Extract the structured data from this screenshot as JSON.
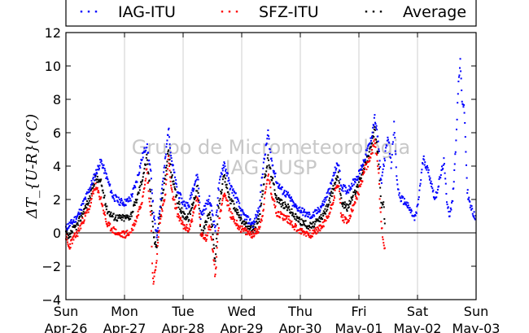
{
  "chart_data": {
    "type": "scatter",
    "ylabel": "ΔT_{U-R}(°C)",
    "ylim": [
      -4,
      12
    ],
    "yticks": [
      -4,
      -2,
      0,
      2,
      4,
      6,
      8,
      10,
      12
    ],
    "ytick_labels": [
      "−4",
      "−2",
      "0",
      "2",
      "4",
      "6",
      "8",
      "10",
      "12"
    ],
    "xlim": [
      0,
      7
    ],
    "xtick_days": [
      "Sun",
      "Mon",
      "Tue",
      "Wed",
      "Thu",
      "Fri",
      "Sat",
      "Sun"
    ],
    "xtick_dates": [
      "Apr-26",
      "Apr-27",
      "Apr-28",
      "Apr-29",
      "Apr-30",
      "May-01",
      "May-02",
      "May-03"
    ],
    "grid": "vertical",
    "legend_position": "top",
    "watermark": [
      "Grupo de Micrometeorologia",
      "IAG - USP"
    ],
    "series": [
      {
        "name": "IAG-ITU",
        "color": "#0000ff",
        "points": [
          [
            0.0,
            0.3
          ],
          [
            0.1,
            0.6
          ],
          [
            0.2,
            1.0
          ],
          [
            0.3,
            1.8
          ],
          [
            0.4,
            2.6
          ],
          [
            0.5,
            3.5
          ],
          [
            0.6,
            4.3
          ],
          [
            0.7,
            3.3
          ],
          [
            0.8,
            2.2
          ],
          [
            0.9,
            1.9
          ],
          [
            1.0,
            1.8
          ],
          [
            1.1,
            2.0
          ],
          [
            1.2,
            3.0
          ],
          [
            1.3,
            4.5
          ],
          [
            1.38,
            5.3
          ],
          [
            1.45,
            3.5
          ],
          [
            1.5,
            1.0
          ],
          [
            1.55,
            -0.3
          ],
          [
            1.6,
            1.5
          ],
          [
            1.7,
            4.5
          ],
          [
            1.75,
            6.3
          ],
          [
            1.8,
            4.5
          ],
          [
            1.9,
            2.5
          ],
          [
            2.0,
            1.8
          ],
          [
            2.1,
            1.6
          ],
          [
            2.15,
            2.5
          ],
          [
            2.2,
            3.0
          ],
          [
            2.25,
            3.5
          ],
          [
            2.3,
            1.0
          ],
          [
            2.4,
            1.7
          ],
          [
            2.45,
            2.0
          ],
          [
            2.5,
            1.2
          ],
          [
            2.55,
            0.2
          ],
          [
            2.6,
            2.5
          ],
          [
            2.65,
            3.5
          ],
          [
            2.7,
            4.2
          ],
          [
            2.8,
            2.8
          ],
          [
            2.9,
            2.2
          ],
          [
            3.0,
            1.2
          ],
          [
            3.1,
            0.8
          ],
          [
            3.2,
            0.5
          ],
          [
            3.3,
            1.5
          ],
          [
            3.35,
            3.5
          ],
          [
            3.45,
            6.0
          ],
          [
            3.5,
            4.5
          ],
          [
            3.6,
            3.0
          ],
          [
            3.7,
            2.5
          ],
          [
            3.8,
            2.2
          ],
          [
            3.9,
            1.6
          ],
          [
            4.0,
            1.4
          ],
          [
            4.1,
            1.1
          ],
          [
            4.2,
            1.0
          ],
          [
            4.3,
            1.3
          ],
          [
            4.4,
            1.8
          ],
          [
            4.5,
            2.6
          ],
          [
            4.6,
            3.8
          ],
          [
            4.65,
            4.2
          ],
          [
            4.7,
            2.8
          ],
          [
            4.8,
            2.5
          ],
          [
            4.9,
            3.0
          ],
          [
            5.0,
            3.5
          ],
          [
            5.1,
            4.5
          ],
          [
            5.2,
            5.5
          ],
          [
            5.27,
            6.9
          ],
          [
            5.33,
            5.5
          ],
          [
            5.38,
            3.0
          ],
          [
            5.42,
            4.0
          ],
          [
            5.5,
            5.8
          ],
          [
            5.55,
            4.0
          ],
          [
            5.6,
            6.5
          ],
          [
            5.65,
            3.0
          ],
          [
            5.7,
            2.1
          ],
          [
            5.8,
            1.8
          ],
          [
            5.9,
            1.2
          ],
          [
            5.95,
            0.8
          ],
          [
            6.0,
            1.5
          ],
          [
            6.05,
            3.0
          ],
          [
            6.1,
            4.5
          ],
          [
            6.15,
            4.0
          ],
          [
            6.2,
            3.5
          ],
          [
            6.3,
            2.0
          ],
          [
            6.4,
            3.5
          ],
          [
            6.45,
            4.3
          ],
          [
            6.5,
            2.0
          ],
          [
            6.55,
            1.0
          ],
          [
            6.6,
            2.0
          ],
          [
            6.65,
            5.0
          ],
          [
            6.7,
            9.0
          ],
          [
            6.73,
            10.2
          ],
          [
            6.76,
            8.0
          ],
          [
            6.8,
            7.3
          ],
          [
            6.85,
            2.5
          ],
          [
            6.9,
            1.6
          ],
          [
            6.95,
            1.2
          ],
          [
            7.0,
            0.8
          ]
        ]
      },
      {
        "name": "SFZ-ITU",
        "color": "#ff0000",
        "points": [
          [
            0.0,
            -0.2
          ],
          [
            0.05,
            -0.9
          ],
          [
            0.1,
            -0.5
          ],
          [
            0.2,
            0.0
          ],
          [
            0.3,
            0.8
          ],
          [
            0.4,
            1.5
          ],
          [
            0.5,
            2.8
          ],
          [
            0.6,
            2.0
          ],
          [
            0.7,
            0.5
          ],
          [
            0.8,
            0.2
          ],
          [
            0.9,
            -0.1
          ],
          [
            1.0,
            -0.1
          ],
          [
            1.1,
            0.0
          ],
          [
            1.2,
            0.8
          ],
          [
            1.3,
            2.0
          ],
          [
            1.38,
            3.8
          ],
          [
            1.45,
            1.0
          ],
          [
            1.48,
            -2.5
          ],
          [
            1.5,
            -3.0
          ],
          [
            1.55,
            -1.5
          ],
          [
            1.6,
            0.5
          ],
          [
            1.7,
            2.5
          ],
          [
            1.75,
            4.5
          ],
          [
            1.8,
            2.5
          ],
          [
            1.9,
            1.2
          ],
          [
            2.0,
            0.4
          ],
          [
            2.1,
            0.2
          ],
          [
            2.15,
            0.8
          ],
          [
            2.2,
            1.5
          ],
          [
            2.25,
            2.2
          ],
          [
            2.3,
            0.0
          ],
          [
            2.4,
            -0.3
          ],
          [
            2.45,
            0.5
          ],
          [
            2.5,
            -0.8
          ],
          [
            2.52,
            -1.5
          ],
          [
            2.55,
            -2.7
          ],
          [
            2.6,
            0.3
          ],
          [
            2.65,
            1.5
          ],
          [
            2.7,
            2.5
          ],
          [
            2.8,
            1.2
          ],
          [
            2.9,
            0.6
          ],
          [
            3.0,
            0.2
          ],
          [
            3.1,
            0.0
          ],
          [
            3.2,
            -0.1
          ],
          [
            3.3,
            0.3
          ],
          [
            3.35,
            1.0
          ],
          [
            3.45,
            3.5
          ],
          [
            3.5,
            2.5
          ],
          [
            3.6,
            1.2
          ],
          [
            3.7,
            1.0
          ],
          [
            3.8,
            0.8
          ],
          [
            3.9,
            0.4
          ],
          [
            4.0,
            0.1
          ],
          [
            4.1,
            0.0
          ],
          [
            4.2,
            -0.1
          ],
          [
            4.3,
            0.2
          ],
          [
            4.4,
            0.5
          ],
          [
            4.5,
            1.2
          ],
          [
            4.6,
            2.5
          ],
          [
            4.65,
            3.0
          ],
          [
            4.7,
            1.0
          ],
          [
            4.8,
            0.6
          ],
          [
            4.9,
            1.5
          ],
          [
            5.0,
            2.5
          ],
          [
            5.1,
            3.8
          ],
          [
            5.2,
            4.5
          ],
          [
            5.27,
            5.5
          ],
          [
            5.33,
            4.0
          ],
          [
            5.38,
            0.5
          ],
          [
            5.42,
            -0.5
          ],
          [
            5.45,
            -1.0
          ]
        ]
      },
      {
        "name": "Average",
        "color": "#000000",
        "points": [
          [
            0.0,
            0.0
          ],
          [
            0.05,
            -0.4
          ],
          [
            0.1,
            0.1
          ],
          [
            0.2,
            0.5
          ],
          [
            0.3,
            1.3
          ],
          [
            0.4,
            2.0
          ],
          [
            0.5,
            3.3
          ],
          [
            0.6,
            3.0
          ],
          [
            0.7,
            1.4
          ],
          [
            0.8,
            1.0
          ],
          [
            0.9,
            0.9
          ],
          [
            1.0,
            0.9
          ],
          [
            1.1,
            1.0
          ],
          [
            1.2,
            1.9
          ],
          [
            1.3,
            3.2
          ],
          [
            1.38,
            4.5
          ],
          [
            1.45,
            2.2
          ],
          [
            1.5,
            -0.3
          ],
          [
            1.55,
            -0.9
          ],
          [
            1.6,
            1.0
          ],
          [
            1.7,
            3.5
          ],
          [
            1.75,
            5.0
          ],
          [
            1.8,
            3.5
          ],
          [
            1.9,
            1.9
          ],
          [
            2.0,
            1.1
          ],
          [
            2.1,
            0.9
          ],
          [
            2.15,
            1.6
          ],
          [
            2.2,
            2.2
          ],
          [
            2.25,
            2.8
          ],
          [
            2.3,
            -0.1
          ],
          [
            2.4,
            0.7
          ],
          [
            2.45,
            1.2
          ],
          [
            2.5,
            0.2
          ],
          [
            2.53,
            -1.0
          ],
          [
            2.55,
            -1.9
          ],
          [
            2.6,
            1.4
          ],
          [
            2.65,
            2.5
          ],
          [
            2.7,
            3.4
          ],
          [
            2.8,
            2.0
          ],
          [
            2.9,
            1.4
          ],
          [
            3.0,
            0.7
          ],
          [
            3.1,
            0.4
          ],
          [
            3.2,
            0.2
          ],
          [
            3.3,
            0.9
          ],
          [
            3.35,
            2.3
          ],
          [
            3.45,
            4.5
          ],
          [
            3.5,
            3.5
          ],
          [
            3.6,
            2.1
          ],
          [
            3.7,
            1.7
          ],
          [
            3.8,
            1.5
          ],
          [
            3.9,
            1.0
          ],
          [
            4.0,
            0.7
          ],
          [
            4.1,
            0.5
          ],
          [
            4.2,
            0.4
          ],
          [
            4.3,
            0.7
          ],
          [
            4.4,
            1.1
          ],
          [
            4.5,
            1.9
          ],
          [
            4.6,
            3.1
          ],
          [
            4.65,
            3.6
          ],
          [
            4.7,
            1.9
          ],
          [
            4.8,
            1.5
          ],
          [
            4.9,
            2.2
          ],
          [
            5.0,
            3.0
          ],
          [
            5.1,
            4.1
          ],
          [
            5.2,
            5.0
          ],
          [
            5.27,
            6.2
          ],
          [
            5.33,
            4.7
          ],
          [
            5.38,
            1.7
          ],
          [
            5.42,
            1.7
          ],
          [
            5.45,
            0.3
          ]
        ]
      }
    ]
  }
}
